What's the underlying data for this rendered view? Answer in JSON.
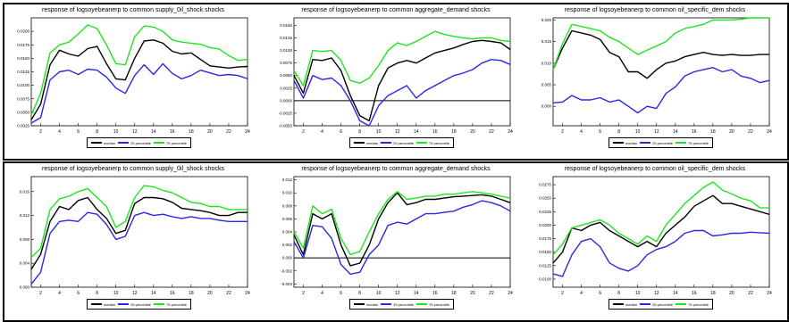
{
  "colors": {
    "median": "#000000",
    "p25": "#2828e6",
    "p75": "#1ee61e"
  },
  "legend": {
    "median": "median",
    "p25": "25 percentile",
    "p75": "75 percentile"
  },
  "chart_data": [
    {
      "type": "line",
      "title": "response of logsoyebeanerp to common supply_0il_shock shocks",
      "x": [
        1,
        2,
        3,
        4,
        5,
        6,
        7,
        8,
        9,
        10,
        11,
        12,
        13,
        14,
        15,
        16,
        17,
        18,
        19,
        20,
        21,
        22,
        23,
        24
      ],
      "ylim": [
        0.0025,
        0.0225
      ],
      "yticks": [
        0.0025,
        0.005,
        0.0075,
        0.01,
        0.0125,
        0.015,
        0.0175,
        0.02
      ],
      "ytick_labels": [
        "0.0025",
        "0.0050",
        "0.0075",
        "0.0100",
        "0.0125",
        "0.0150",
        "0.0175",
        "0.0200"
      ],
      "xticks": [
        2,
        4,
        6,
        8,
        10,
        12,
        14,
        16,
        18,
        20,
        22,
        24
      ],
      "zero_line": false,
      "series": [
        {
          "name": "median",
          "values": [
            0.0036,
            0.0065,
            0.0138,
            0.0165,
            0.0158,
            0.0154,
            0.0168,
            0.0172,
            0.014,
            0.0112,
            0.011,
            0.015,
            0.0182,
            0.0184,
            0.0178,
            0.0163,
            0.0158,
            0.016,
            0.0148,
            0.0136,
            0.0134,
            0.0132,
            0.0134,
            0.0135
          ]
        },
        {
          "name": "25 percentile",
          "values": [
            0.003,
            0.004,
            0.011,
            0.0125,
            0.0128,
            0.012,
            0.013,
            0.0128,
            0.0115,
            0.0095,
            0.0085,
            0.0118,
            0.0138,
            0.012,
            0.014,
            0.0122,
            0.0112,
            0.0118,
            0.0128,
            0.0123,
            0.0118,
            0.012,
            0.0118,
            0.0112
          ]
        },
        {
          "name": "75 percentile",
          "values": [
            0.0045,
            0.0085,
            0.016,
            0.0175,
            0.018,
            0.0195,
            0.0212,
            0.0205,
            0.0175,
            0.014,
            0.0138,
            0.019,
            0.021,
            0.0208,
            0.02,
            0.0184,
            0.018,
            0.0178,
            0.0176,
            0.017,
            0.0167,
            0.0155,
            0.0146,
            0.0148
          ]
        }
      ]
    },
    {
      "type": "line",
      "title": "response of logsoyebeanerp to common aggregate_demand shocks",
      "x": [
        1,
        2,
        3,
        4,
        5,
        6,
        7,
        8,
        9,
        10,
        11,
        12,
        13,
        14,
        15,
        16,
        17,
        18,
        19,
        20,
        21,
        22,
        23,
        24
      ],
      "ylim": [
        -0.005,
        0.0165
      ],
      "yticks": [
        -0.005,
        -0.0025,
        0,
        0.0025,
        0.005,
        0.0075,
        0.01,
        0.0125,
        0.015
      ],
      "ytick_labels": [
        "-0.0050",
        "-0.0025",
        "0.0000",
        "0.0025",
        "0.0050",
        "0.0075",
        "0.0100",
        "0.0125",
        "0.0150"
      ],
      "xticks": [
        2,
        4,
        6,
        8,
        10,
        12,
        14,
        16,
        18,
        20,
        22,
        24
      ],
      "zero_line": true,
      "series": [
        {
          "name": "median",
          "values": [
            0.005,
            0.0015,
            0.0082,
            0.008,
            0.0085,
            0.006,
            0.001,
            -0.003,
            -0.004,
            0.003,
            0.0065,
            0.0075,
            0.008,
            0.0075,
            0.0085,
            0.0095,
            0.01,
            0.0105,
            0.0112,
            0.0118,
            0.012,
            0.0118,
            0.0115,
            0.0102
          ]
        },
        {
          "name": "25 percentile",
          "values": [
            0.004,
            0.0005,
            0.005,
            0.0042,
            0.0045,
            0.003,
            0.0,
            -0.004,
            -0.005,
            -0.001,
            0.001,
            0.002,
            0.003,
            0.0005,
            0.002,
            0.003,
            0.004,
            0.005,
            0.0055,
            0.0062,
            0.0075,
            0.0082,
            0.008,
            0.0072
          ]
        },
        {
          "name": "75 percentile",
          "values": [
            0.006,
            0.003,
            0.01,
            0.0098,
            0.01,
            0.008,
            0.004,
            0.0035,
            0.0045,
            0.007,
            0.01,
            0.0115,
            0.011,
            0.0118,
            0.0128,
            0.0138,
            0.0132,
            0.0128,
            0.0125,
            0.0123,
            0.0125,
            0.0125,
            0.012,
            0.0118
          ]
        }
      ]
    },
    {
      "type": "line",
      "title": "response of logsoyebeanerp to common oil_specific_dem shocks",
      "x": [
        1,
        2,
        3,
        4,
        5,
        6,
        7,
        8,
        9,
        10,
        11,
        12,
        13,
        14,
        15,
        16,
        17,
        18,
        19,
        20,
        21,
        22,
        23,
        24
      ],
      "ylim": [
        -0.0045,
        0.0205
      ],
      "yticks": [
        0,
        0.005,
        0.01,
        0.015,
        0.02
      ],
      "ytick_labels": [
        "0.000",
        "0.005",
        "0.010",
        "0.015",
        "0.020"
      ],
      "xticks": [
        2,
        4,
        6,
        8,
        10,
        12,
        14,
        16,
        18,
        20,
        22,
        24
      ],
      "zero_line": false,
      "series": [
        {
          "name": "median",
          "values": [
            0.0085,
            0.0135,
            0.0175,
            0.017,
            0.0165,
            0.0155,
            0.0125,
            0.0115,
            0.008,
            0.008,
            0.0065,
            0.0085,
            0.01,
            0.0105,
            0.0115,
            0.012,
            0.0125,
            0.012,
            0.0118,
            0.012,
            0.0118,
            0.0118,
            0.012,
            0.012
          ]
        },
        {
          "name": "25 percentile",
          "values": [
            0.0008,
            0.001,
            0.0025,
            0.0015,
            0.0015,
            0.002,
            0.001,
            0.0015,
            0.0,
            -0.0015,
            0.0,
            -0.0005,
            0.003,
            0.0045,
            0.007,
            0.008,
            0.0085,
            0.009,
            0.008,
            0.0085,
            0.007,
            0.0065,
            0.0055,
            0.006
          ]
        },
        {
          "name": "75 percentile",
          "values": [
            0.0085,
            0.0145,
            0.019,
            0.0185,
            0.018,
            0.0175,
            0.016,
            0.015,
            0.0135,
            0.012,
            0.013,
            0.014,
            0.015,
            0.017,
            0.018,
            0.0185,
            0.019,
            0.02,
            0.02,
            0.02,
            0.0202,
            0.0205,
            0.0205,
            0.0205
          ]
        }
      ]
    },
    {
      "type": "line",
      "title": "response of logsoyebeanerp to common supply_0il_shock shocks",
      "x": [
        1,
        2,
        3,
        4,
        5,
        6,
        7,
        8,
        9,
        10,
        11,
        12,
        13,
        14,
        15,
        16,
        17,
        18,
        19,
        20,
        21,
        22,
        23,
        24
      ],
      "ylim": [
        0,
        0.0185
      ],
      "yticks": [
        0,
        0.004,
        0.008,
        0.012,
        0.016
      ],
      "ytick_labels": [
        "0.000",
        "0.004",
        "0.008",
        "0.012",
        "0.016"
      ],
      "xticks": [
        2,
        4,
        6,
        8,
        10,
        12,
        14,
        16,
        18,
        20,
        22,
        24
      ],
      "zero_line": false,
      "series": [
        {
          "name": "median",
          "values": [
            0.003,
            0.0055,
            0.011,
            0.0135,
            0.013,
            0.0145,
            0.015,
            0.013,
            0.0115,
            0.009,
            0.0095,
            0.014,
            0.015,
            0.015,
            0.0148,
            0.0142,
            0.0132,
            0.013,
            0.0128,
            0.0125,
            0.012,
            0.012,
            0.0125,
            0.0125
          ]
        },
        {
          "name": "25 percentile",
          "values": [
            0.0005,
            0.0025,
            0.009,
            0.011,
            0.0112,
            0.011,
            0.0125,
            0.0122,
            0.0105,
            0.008,
            0.0085,
            0.012,
            0.0125,
            0.012,
            0.0122,
            0.0118,
            0.0115,
            0.0118,
            0.0115,
            0.0115,
            0.0112,
            0.011,
            0.011,
            0.011
          ]
        },
        {
          "name": "75 percentile",
          "values": [
            0.005,
            0.0065,
            0.013,
            0.0148,
            0.0152,
            0.016,
            0.0165,
            0.015,
            0.0135,
            0.01,
            0.011,
            0.015,
            0.017,
            0.0168,
            0.0162,
            0.0158,
            0.015,
            0.0142,
            0.014,
            0.0135,
            0.0135,
            0.013,
            0.013,
            0.013
          ]
        }
      ]
    },
    {
      "type": "line",
      "title": "response of logsoyebeanerp to common aggregate_demand shocks",
      "x": [
        1,
        2,
        3,
        4,
        5,
        6,
        7,
        8,
        9,
        10,
        11,
        12,
        13,
        14,
        15,
        16,
        17,
        18,
        19,
        20,
        21,
        22,
        23,
        24
      ],
      "ylim": [
        -0.0045,
        0.0125
      ],
      "yticks": [
        -0.004,
        -0.002,
        0,
        0.002,
        0.004,
        0.006,
        0.008,
        0.01,
        0.012
      ],
      "ytick_labels": [
        "-0.004",
        "-0.002",
        "0.000",
        "0.002",
        "0.004",
        "0.006",
        "0.008",
        "0.010",
        "0.012"
      ],
      "xticks": [
        2,
        4,
        6,
        8,
        10,
        12,
        14,
        16,
        18,
        20,
        22,
        24
      ],
      "zero_line": true,
      "series": [
        {
          "name": "median",
          "values": [
            0.0035,
            0.0005,
            0.0068,
            0.006,
            0.0068,
            0.002,
            -0.0012,
            -0.0008,
            0.002,
            0.006,
            0.0085,
            0.01,
            0.0082,
            0.0085,
            0.009,
            0.009,
            0.0092,
            0.0094,
            0.0095,
            0.0096,
            0.0097,
            0.0095,
            0.009,
            0.0085
          ]
        },
        {
          "name": "25 percentile",
          "values": [
            0.0025,
            0.0,
            0.005,
            0.0048,
            0.003,
            -0.001,
            -0.0025,
            -0.0022,
            0.0005,
            0.002,
            0.005,
            0.0055,
            0.0052,
            0.006,
            0.0068,
            0.0068,
            0.007,
            0.0072,
            0.0078,
            0.0082,
            0.0088,
            0.0085,
            0.008,
            0.0072
          ]
        },
        {
          "name": "75 percentile",
          "values": [
            0.004,
            0.0015,
            0.008,
            0.0068,
            0.0075,
            0.003,
            0.0005,
            0.001,
            0.004,
            0.0068,
            0.009,
            0.0102,
            0.009,
            0.0092,
            0.0095,
            0.0095,
            0.0098,
            0.0098,
            0.01,
            0.0102,
            0.01,
            0.0098,
            0.0095,
            0.0092
          ]
        }
      ]
    },
    {
      "type": "line",
      "title": "response of logsoyebeanerp to common oil_specific_dem shocks",
      "x": [
        1,
        2,
        3,
        4,
        5,
        6,
        7,
        8,
        9,
        10,
        11,
        12,
        13,
        14,
        15,
        16,
        17,
        18,
        19,
        20,
        21,
        22,
        23,
        24
      ],
      "ylim": [
        0.0085,
        0.029
      ],
      "yticks": [
        0.01,
        0.0125,
        0.015,
        0.0175,
        0.02,
        0.0225,
        0.025,
        0.0275
      ],
      "ytick_labels": [
        "0.0100",
        "0.0125",
        "0.0150",
        "0.0175",
        "0.0200",
        "0.0225",
        "0.0250",
        "0.0275"
      ],
      "xticks": [
        2,
        4,
        6,
        8,
        10,
        12,
        14,
        16,
        18,
        20,
        22,
        24
      ],
      "zero_line": false,
      "series": [
        {
          "name": "median",
          "values": [
            0.013,
            0.015,
            0.0195,
            0.019,
            0.02,
            0.0205,
            0.019,
            0.018,
            0.017,
            0.016,
            0.017,
            0.016,
            0.0185,
            0.02,
            0.0215,
            0.0235,
            0.0245,
            0.0255,
            0.024,
            0.024,
            0.0235,
            0.023,
            0.0225,
            0.022
          ]
        },
        {
          "name": "25 percentile",
          "values": [
            0.011,
            0.0105,
            0.0145,
            0.017,
            0.0175,
            0.016,
            0.013,
            0.012,
            0.0115,
            0.0125,
            0.0145,
            0.0155,
            0.016,
            0.017,
            0.0185,
            0.019,
            0.019,
            0.018,
            0.0182,
            0.0185,
            0.0185,
            0.0187,
            0.0186,
            0.0185
          ]
        },
        {
          "name": "75 percentile",
          "values": [
            0.0145,
            0.0165,
            0.0195,
            0.02,
            0.0205,
            0.021,
            0.02,
            0.0185,
            0.0175,
            0.0165,
            0.018,
            0.017,
            0.02,
            0.022,
            0.024,
            0.0255,
            0.027,
            0.028,
            0.0265,
            0.0258,
            0.025,
            0.0245,
            0.0232,
            0.0232
          ]
        }
      ]
    }
  ]
}
